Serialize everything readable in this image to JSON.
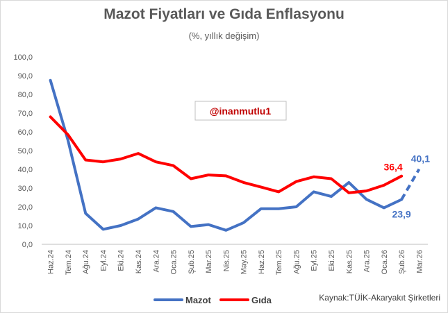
{
  "chart_data": {
    "type": "line",
    "title": "Mazot Fiyatları ve Gıda Enflasyonu",
    "subtitle": "(%, yıllık değişim)",
    "source": "Kaynak:TÜİK-Akaryakıt Şirketleri",
    "watermark": "@inanmutlu1",
    "ylim": [
      0,
      100
    ],
    "yticks": [
      "0,0",
      "10,0",
      "20,0",
      "30,0",
      "40,0",
      "50,0",
      "60,0",
      "70,0",
      "80,0",
      "90,0",
      "100,0"
    ],
    "grid": false,
    "legend_position": "bottom",
    "categories": [
      "Haz.24",
      "Tem.24",
      "Ağu.24",
      "Eyl.24",
      "Eki.24",
      "Kas.24",
      "Ara.24",
      "Oca.25",
      "Şub.25",
      "Mar.25",
      "Nis.25",
      "May.25",
      "Haz.25",
      "Tem.25",
      "Ağu.25",
      "Eyl.25",
      "Eki.25",
      "Kas.25",
      "Ara.25",
      "Oca.26",
      "Şub.26",
      "Mar.26"
    ],
    "series": [
      {
        "name": "Mazot",
        "color": "#4472c4",
        "values": [
          87.5,
          55.5,
          16.5,
          8.0,
          10.0,
          13.5,
          19.5,
          17.5,
          9.5,
          10.5,
          7.5,
          11.5,
          19.0,
          19.0,
          20.0,
          28.0,
          25.5,
          33.0,
          24.0,
          19.5,
          23.9,
          40.1
        ],
        "dashed_from_index": 20,
        "labels": {
          "20": "23,9",
          "21": "40,1"
        }
      },
      {
        "name": "Gıda",
        "color": "#ff0000",
        "values": [
          68.0,
          58.5,
          45.0,
          44.0,
          45.5,
          48.5,
          44.0,
          42.0,
          35.0,
          37.0,
          36.5,
          33.0,
          30.5,
          28.0,
          33.5,
          36.0,
          35.0,
          27.5,
          28.5,
          31.5,
          36.4,
          null
        ],
        "labels": {
          "20": "36,4"
        }
      }
    ]
  }
}
